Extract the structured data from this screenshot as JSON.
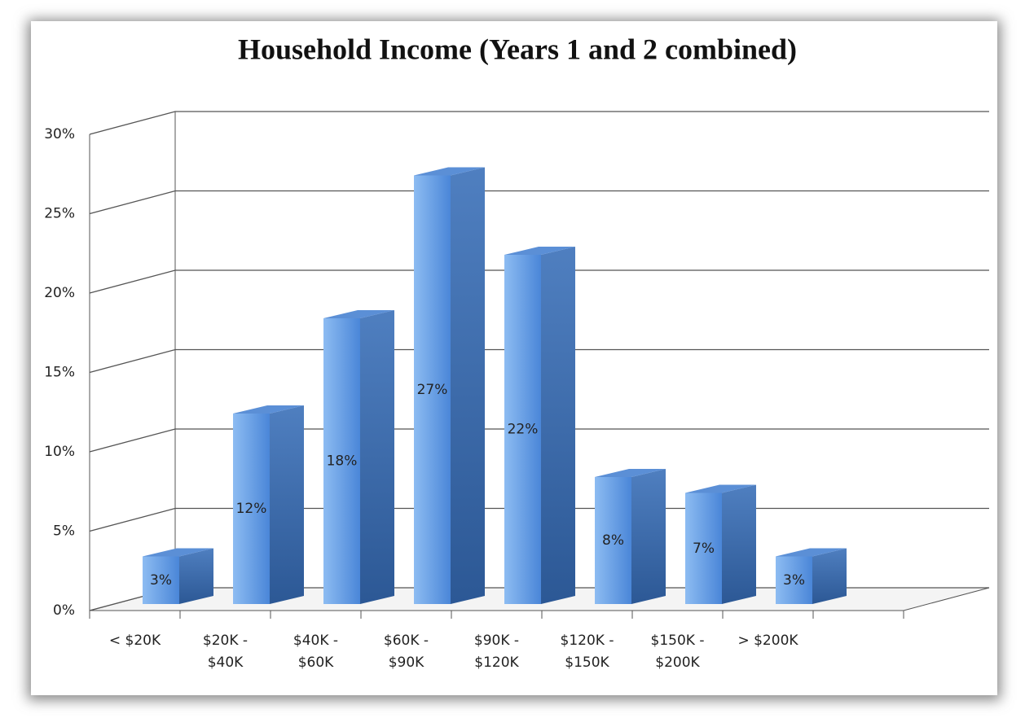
{
  "chart_data": {
    "type": "bar3d",
    "title": "Household Income (Years 1 and 2 combined)",
    "categories": [
      "< $20K",
      "$20K - $40K",
      "$40K - $60K",
      "$60K - $90K",
      "$90K - $120K",
      "$120K - $150K",
      "$150K - $200K",
      "> $200K"
    ],
    "values": [
      3,
      12,
      18,
      27,
      22,
      8,
      7,
      3
    ],
    "value_labels": [
      "3%",
      "12%",
      "18%",
      "27%",
      "22%",
      "8%",
      "7%",
      "3%"
    ],
    "color": "#4a86d8",
    "ylim": [
      0,
      30
    ],
    "yticks": [
      {
        "value": 0,
        "label": "0%"
      },
      {
        "value": 5,
        "label": "5%"
      },
      {
        "value": 10,
        "label": "10%"
      },
      {
        "value": 15,
        "label": "15%"
      },
      {
        "value": 20,
        "label": "20%"
      },
      {
        "value": 25,
        "label": "25%"
      },
      {
        "value": 30,
        "label": "30%"
      }
    ],
    "grid": true
  }
}
